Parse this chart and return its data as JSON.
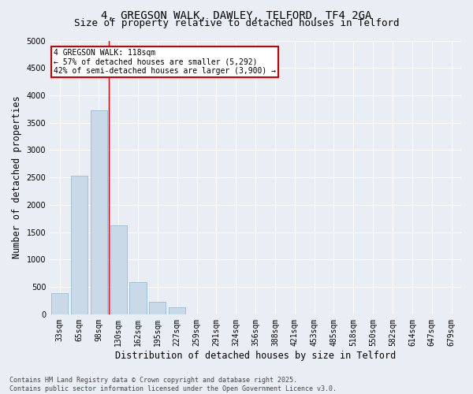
{
  "title_line1": "4, GREGSON WALK, DAWLEY, TELFORD, TF4 2GA",
  "title_line2": "Size of property relative to detached houses in Telford",
  "xlabel": "Distribution of detached houses by size in Telford",
  "ylabel": "Number of detached properties",
  "categories": [
    "33sqm",
    "65sqm",
    "98sqm",
    "130sqm",
    "162sqm",
    "195sqm",
    "227sqm",
    "259sqm",
    "291sqm",
    "324sqm",
    "356sqm",
    "388sqm",
    "421sqm",
    "453sqm",
    "485sqm",
    "518sqm",
    "550sqm",
    "582sqm",
    "614sqm",
    "647sqm",
    "679sqm"
  ],
  "values": [
    380,
    2530,
    3720,
    1620,
    590,
    230,
    120,
    0,
    0,
    0,
    0,
    0,
    0,
    0,
    0,
    0,
    0,
    0,
    0,
    0,
    0
  ],
  "bar_color": "#c9d9e8",
  "bar_edge_color": "#8ab4cc",
  "annotation_text": "4 GREGSON WALK: 118sqm\n← 57% of detached houses are smaller (5,292)\n42% of semi-detached houses are larger (3,900) →",
  "annotation_box_color": "#ffffff",
  "annotation_box_edge": "#cc0000",
  "ylim": [
    0,
    5000
  ],
  "yticks": [
    0,
    500,
    1000,
    1500,
    2000,
    2500,
    3000,
    3500,
    4000,
    4500,
    5000
  ],
  "background_color": "#e8eef4",
  "grid_color": "#ffffff",
  "footer_line1": "Contains HM Land Registry data © Crown copyright and database right 2025.",
  "footer_line2": "Contains public sector information licensed under the Open Government Licence v3.0.",
  "title_fontsize": 10,
  "subtitle_fontsize": 9,
  "tick_fontsize": 7,
  "label_fontsize": 8.5,
  "annotation_fontsize": 7,
  "footer_fontsize": 6
}
